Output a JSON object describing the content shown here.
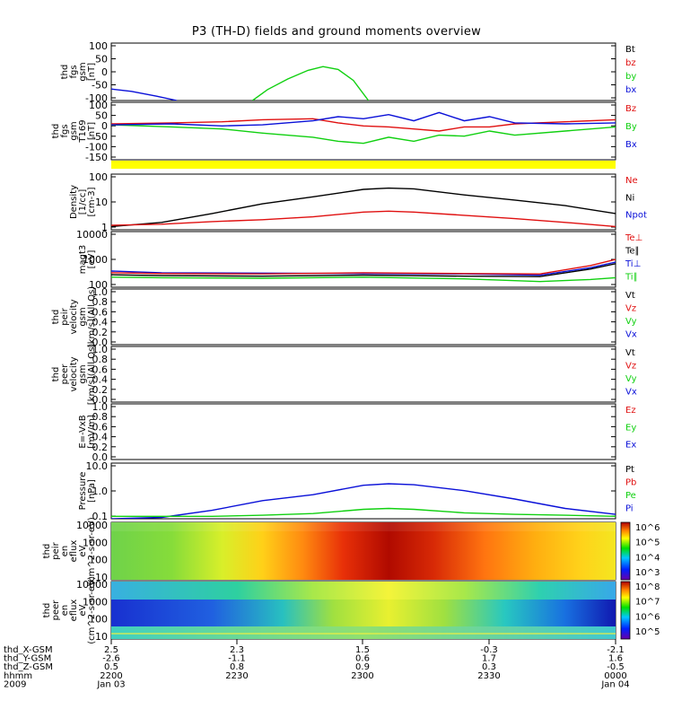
{
  "title": "P3 (TH-D) fields and ground moments overview",
  "colors": {
    "black": "#000000",
    "red": "#e01010",
    "green": "#10d010",
    "blue": "#0a10d8",
    "yellow": "#ffff00"
  },
  "chart_data": [
    {
      "type": "line",
      "panel": "fgs",
      "ylabel": [
        "thd",
        "fgs",
        "gsm",
        "[nT]"
      ],
      "ylim": [
        -100,
        100
      ],
      "yticks": [
        "100",
        "50",
        "0",
        "-50",
        "-100"
      ],
      "legend": [
        {
          "label": "Bt",
          "color": "black"
        },
        {
          "label": "bz",
          "color": "red"
        },
        {
          "label": "by",
          "color": "green"
        },
        {
          "label": "bx",
          "color": "blue"
        }
      ],
      "series": [
        {
          "color": "blue",
          "x": [
            0.0,
            0.04,
            0.09,
            0.13
          ],
          "y": [
            -60,
            -68,
            -85,
            -100
          ]
        },
        {
          "color": "green",
          "x": [
            0.28,
            0.31,
            0.35,
            0.39,
            0.42,
            0.45,
            0.48,
            0.51
          ],
          "y": [
            -100,
            -62,
            -25,
            5,
            18,
            8,
            -30,
            -100
          ]
        }
      ]
    },
    {
      "type": "line",
      "panel": "fgs_T169",
      "ylabel": [
        "thd",
        "fgs",
        "gsm",
        "T169",
        "[nT]"
      ],
      "ylim": [
        -170,
        110
      ],
      "yticks": [
        "100",
        "50",
        "0",
        "-50",
        "-100",
        "-150"
      ],
      "legend": [
        {
          "label": "Bz",
          "color": "red"
        },
        {
          "label": "By",
          "color": "green"
        },
        {
          "label": "Bx",
          "color": "blue"
        }
      ],
      "series": [
        {
          "color": "red",
          "x": [
            0.0,
            0.12,
            0.22,
            0.3,
            0.4,
            0.45,
            0.5,
            0.55,
            0.6,
            0.65,
            0.7,
            0.75,
            0.8,
            0.9,
            1.0
          ],
          "y": [
            5,
            10,
            15,
            25,
            30,
            10,
            -5,
            -10,
            -20,
            -30,
            -10,
            -10,
            5,
            15,
            25
          ]
        },
        {
          "color": "green",
          "x": [
            0.0,
            0.12,
            0.22,
            0.3,
            0.4,
            0.45,
            0.5,
            0.55,
            0.6,
            0.65,
            0.7,
            0.75,
            0.8,
            0.9,
            1.0
          ],
          "y": [
            0,
            -10,
            -20,
            -40,
            -60,
            -80,
            -90,
            -60,
            -80,
            -50,
            -55,
            -30,
            -50,
            -30,
            -10
          ]
        },
        {
          "color": "blue",
          "x": [
            0.0,
            0.12,
            0.22,
            0.3,
            0.4,
            0.45,
            0.5,
            0.55,
            0.6,
            0.65,
            0.7,
            0.75,
            0.8,
            0.9,
            1.0
          ],
          "y": [
            0,
            5,
            -5,
            0,
            20,
            40,
            30,
            50,
            20,
            60,
            20,
            40,
            10,
            5,
            10
          ]
        }
      ]
    },
    {
      "type": "line",
      "panel": "density",
      "ylabel": [
        "Density",
        "[1/cc]",
        "[cm-3]"
      ],
      "yscale": "log",
      "ylim": [
        0.2,
        200
      ],
      "yticks": [
        "100",
        "10",
        "1"
      ],
      "legend": [
        {
          "label": "Ne",
          "color": "red"
        },
        {
          "label": "Ni",
          "color": "black"
        },
        {
          "label": "Npot",
          "color": "blue"
        }
      ],
      "series": [
        {
          "color": "black",
          "x": [
            0.0,
            0.1,
            0.2,
            0.3,
            0.4,
            0.5,
            0.55,
            0.6,
            0.7,
            0.8,
            0.9,
            1.0
          ],
          "y": [
            0.3,
            0.5,
            1.5,
            5,
            12,
            30,
            35,
            32,
            15,
            8,
            4,
            1.5
          ]
        },
        {
          "color": "red",
          "x": [
            0.0,
            0.1,
            0.2,
            0.3,
            0.4,
            0.5,
            0.55,
            0.6,
            0.7,
            0.8,
            0.9,
            1.0
          ],
          "y": [
            0.35,
            0.4,
            0.55,
            0.7,
            1.0,
            1.8,
            2.0,
            1.8,
            1.2,
            0.8,
            0.5,
            0.3
          ]
        }
      ]
    },
    {
      "type": "line",
      "panel": "temperature",
      "ylabel": [
        "magt3",
        "[eV]"
      ],
      "yscale": "log",
      "ylim": [
        100,
        10000
      ],
      "yticks": [
        "10000",
        "1000",
        "100"
      ],
      "legend": [
        {
          "label": "Te⊥",
          "color": "red"
        },
        {
          "label": "Te∥",
          "color": "black"
        },
        {
          "label": "Ti⊥",
          "color": "blue"
        },
        {
          "label": "Ti∥",
          "color": "green"
        }
      ],
      "series": [
        {
          "color": "blue",
          "x": [
            0.0,
            0.1,
            0.3,
            0.5,
            0.7,
            0.85,
            0.95,
            1.0
          ],
          "y": [
            380,
            330,
            320,
            310,
            300,
            270,
            500,
            800
          ]
        },
        {
          "color": "red",
          "x": [
            0.0,
            0.1,
            0.3,
            0.5,
            0.7,
            0.85,
            0.95,
            1.0
          ],
          "y": [
            330,
            310,
            300,
            330,
            310,
            300,
            600,
            1000
          ]
        },
        {
          "color": "black",
          "x": [
            0.0,
            0.1,
            0.3,
            0.5,
            0.7,
            0.85,
            0.95,
            1.0
          ],
          "y": [
            280,
            260,
            250,
            270,
            250,
            240,
            450,
            700
          ]
        },
        {
          "color": "green",
          "x": [
            0.0,
            0.1,
            0.3,
            0.5,
            0.7,
            0.85,
            0.95,
            1.0
          ],
          "y": [
            230,
            220,
            210,
            230,
            200,
            160,
            190,
            220
          ]
        }
      ]
    },
    {
      "type": "line",
      "panel": "peir_velocity",
      "ylabel": [
        "thd",
        "peir",
        "velocity",
        "gsm",
        "[km/s](All Qs)"
      ],
      "ylim": [
        0,
        1
      ],
      "yticks": [
        "1.0",
        "0.8",
        "0.6",
        "0.4",
        "0.2",
        "0.0"
      ],
      "legend": [
        {
          "label": "Vt",
          "color": "black"
        },
        {
          "label": "Vz",
          "color": "red"
        },
        {
          "label": "Vy",
          "color": "green"
        },
        {
          "label": "Vx",
          "color": "blue"
        }
      ],
      "series": []
    },
    {
      "type": "line",
      "panel": "peer_velocity",
      "ylabel": [
        "thd",
        "peer",
        "velocity",
        "gsm",
        "[km/s](All Qs)"
      ],
      "ylim": [
        0,
        1
      ],
      "yticks": [
        "1.0",
        "0.8",
        "0.6",
        "0.4",
        "0.2",
        "0.0"
      ],
      "legend": [
        {
          "label": "Vt",
          "color": "black"
        },
        {
          "label": "Vz",
          "color": "red"
        },
        {
          "label": "Vy",
          "color": "green"
        },
        {
          "label": "Vx",
          "color": "blue"
        }
      ],
      "series": []
    },
    {
      "type": "line",
      "panel": "efield",
      "ylabel": [
        "E=-VxB",
        "[mV/m]"
      ],
      "ylim": [
        0,
        1
      ],
      "yticks": [
        "1.0",
        "0.8",
        "0.6",
        "0.4",
        "0.2",
        "0.0"
      ],
      "legend": [
        {
          "label": "Ez",
          "color": "red"
        },
        {
          "label": "Ey",
          "color": "green"
        },
        {
          "label": "Ex",
          "color": "blue"
        }
      ],
      "series": []
    },
    {
      "type": "line",
      "panel": "pressure",
      "ylabel": [
        "Pressure",
        "[nPa]"
      ],
      "yscale": "log",
      "ylim": [
        0.03,
        20
      ],
      "yticks": [
        "10.0",
        "1.0",
        "0.1"
      ],
      "legend": [
        {
          "label": "Pt",
          "color": "black"
        },
        {
          "label": "Pb",
          "color": "red"
        },
        {
          "label": "Pe",
          "color": "green"
        },
        {
          "label": "Pi",
          "color": "blue"
        }
      ],
      "series": [
        {
          "color": "blue",
          "x": [
            0.0,
            0.1,
            0.2,
            0.3,
            0.4,
            0.5,
            0.55,
            0.6,
            0.7,
            0.8,
            0.9,
            1.0
          ],
          "y": [
            0.03,
            0.035,
            0.08,
            0.25,
            0.5,
            1.5,
            1.8,
            1.6,
            0.8,
            0.3,
            0.1,
            0.05
          ]
        },
        {
          "color": "green",
          "x": [
            0.0,
            0.1,
            0.2,
            0.3,
            0.4,
            0.5,
            0.55,
            0.6,
            0.7,
            0.8,
            0.9,
            1.0
          ],
          "y": [
            0.04,
            0.04,
            0.04,
            0.045,
            0.055,
            0.09,
            0.1,
            0.09,
            0.06,
            0.05,
            0.045,
            0.04
          ]
        }
      ]
    },
    {
      "type": "heatmap",
      "panel": "peir_eflux",
      "ylabel": [
        "thd",
        "peir",
        "en",
        "eflux",
        "eV",
        "(cm^2-s-sr-eV)"
      ],
      "yscale": "log",
      "yticks": [
        "10000",
        "1000",
        "100",
        "10"
      ],
      "colorbar": [
        "10^6",
        "10^5",
        "10^4",
        "10^3"
      ]
    },
    {
      "type": "heatmap",
      "panel": "peer_eflux",
      "ylabel": [
        "thd",
        "peer",
        "en",
        "eflux",
        "eV",
        "(cm^2-s-sr-eV)"
      ],
      "yscale": "log",
      "yticks": [
        "10000",
        "1000",
        "100",
        "10"
      ],
      "colorbar": [
        "10^8",
        "10^7",
        "10^6",
        "10^5"
      ]
    }
  ],
  "xaxis": {
    "rows": [
      {
        "label": "thd_X-GSM",
        "values": [
          "2.5",
          "2.3",
          "1.5",
          "-0.3",
          "-2.1"
        ]
      },
      {
        "label": "thd_Y-GSM",
        "values": [
          "-2.6",
          "-1.1",
          "0.6",
          "1.7",
          "1.6"
        ]
      },
      {
        "label": "thd_Z-GSM",
        "values": [
          "0.5",
          "0.8",
          "0.9",
          "0.3",
          "-0.5"
        ]
      },
      {
        "label": "hhmm",
        "values": [
          "2200",
          "2230",
          "2300",
          "2330",
          "0000"
        ]
      },
      {
        "label": "2009",
        "values": [
          "Jan 03",
          "",
          "",
          "",
          "Jan 04"
        ]
      }
    ]
  }
}
